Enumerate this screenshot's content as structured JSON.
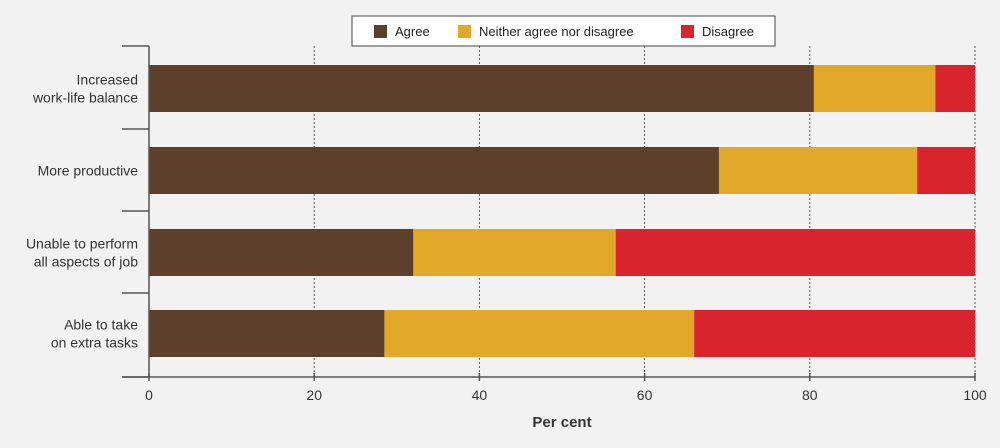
{
  "chart_data": {
    "type": "bar",
    "orientation": "horizontal",
    "stacked": true,
    "categories": [
      [
        "Increased",
        "work-life balance"
      ],
      [
        "More productive"
      ],
      [
        "Unable to perform",
        "all aspects of job"
      ],
      [
        "Able to take",
        "on extra tasks"
      ]
    ],
    "series": [
      {
        "name": "Agree",
        "color": "#5e3f2b",
        "values": [
          80.5,
          69,
          32,
          28.5
        ]
      },
      {
        "name": "Neither agree nor disagree",
        "color": "#e2a82a",
        "values": [
          14.7,
          24,
          24.5,
          37.5
        ]
      },
      {
        "name": "Disagree",
        "color": "#d9232d",
        "values": [
          4.8,
          7,
          43.5,
          34
        ]
      }
    ],
    "xlabel": "Per cent",
    "xlim": [
      0,
      100
    ],
    "xticks": [
      0,
      20,
      40,
      60,
      80,
      100
    ],
    "grid": "vertical-dotted",
    "legend_position": "top"
  }
}
